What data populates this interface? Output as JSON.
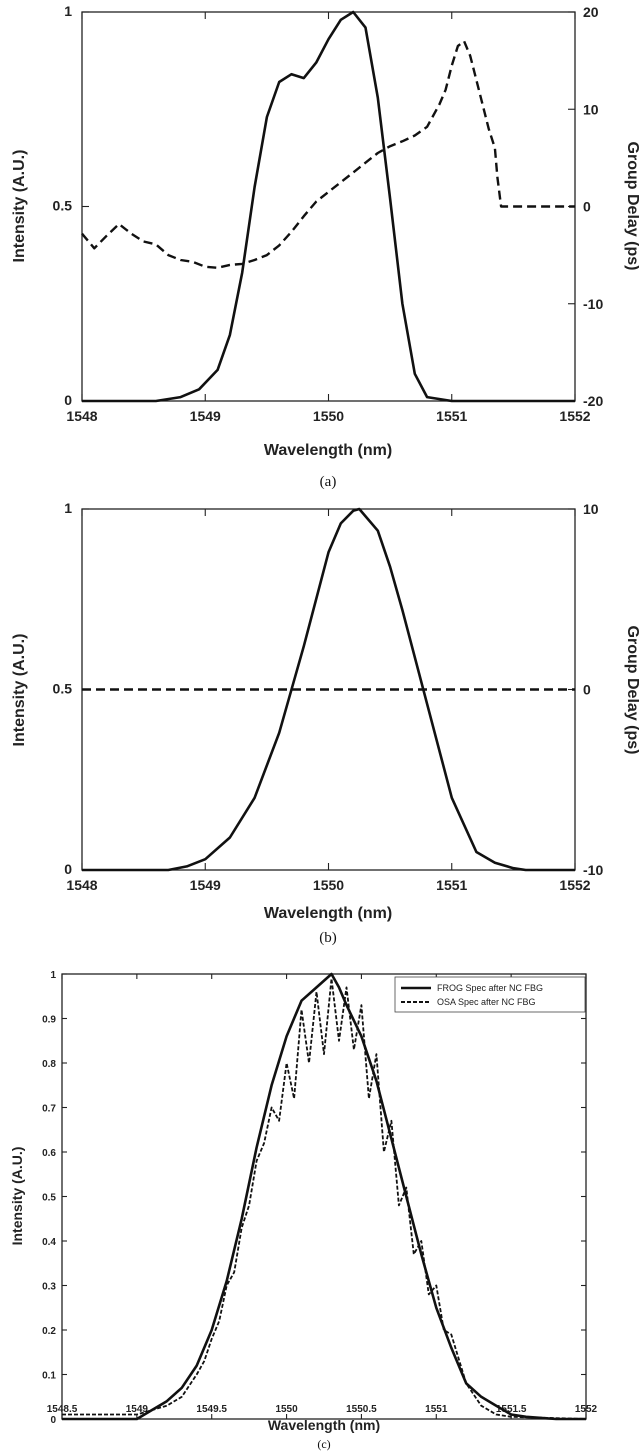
{
  "chart_data": [
    {
      "type": "line",
      "panel_caption": "(a)",
      "xlabel": "Wavelength (nm)",
      "ylabel": "Intensity (A.U.)",
      "y2label": "Group Delay (ps)",
      "xlim": [
        1548,
        1552
      ],
      "ylim": [
        0,
        1
      ],
      "y2lim": [
        -20,
        20
      ],
      "xticks": [
        "1548",
        "1549",
        "1550",
        "1551",
        "1552"
      ],
      "yticks": [
        "0",
        "0.5",
        "1"
      ],
      "y2ticks": [
        "-20",
        "-10",
        "0",
        "10",
        "20"
      ],
      "grid": false,
      "series": [
        {
          "axis": "left",
          "style": "solid",
          "x": [
            1548,
            1548.6,
            1548.8,
            1548.95,
            1549.1,
            1549.2,
            1549.3,
            1549.4,
            1549.5,
            1549.6,
            1549.7,
            1549.8,
            1549.9,
            1550.0,
            1550.1,
            1550.2,
            1550.3,
            1550.4,
            1550.5,
            1550.6,
            1550.7,
            1550.8,
            1551.0,
            1552
          ],
          "y": [
            0,
            0,
            0.01,
            0.03,
            0.08,
            0.17,
            0.33,
            0.55,
            0.73,
            0.82,
            0.84,
            0.83,
            0.87,
            0.93,
            0.98,
            1.0,
            0.96,
            0.78,
            0.52,
            0.25,
            0.07,
            0.01,
            0,
            0
          ]
        },
        {
          "axis": "right",
          "style": "dashed",
          "x": [
            1548,
            1548.1,
            1548.2,
            1548.3,
            1548.4,
            1548.5,
            1548.6,
            1548.7,
            1548.8,
            1548.9,
            1549.0,
            1549.1,
            1549.2,
            1549.3,
            1549.4,
            1549.5,
            1549.6,
            1549.7,
            1549.8,
            1549.9,
            1550.0,
            1550.1,
            1550.2,
            1550.3,
            1550.4,
            1550.5,
            1550.6,
            1550.7,
            1550.8,
            1550.9,
            1550.95,
            1551.0,
            1551.05,
            1551.1,
            1551.15,
            1551.2,
            1551.3,
            1551.35,
            1551.37,
            1551.4,
            1552
          ],
          "y": [
            -2.8,
            -4.3,
            -3.0,
            -1.8,
            -2.8,
            -3.6,
            -3.9,
            -5.0,
            -5.5,
            -5.7,
            -6.2,
            -6.3,
            -6.0,
            -5.9,
            -5.5,
            -5.0,
            -4.0,
            -2.6,
            -1.0,
            0.5,
            1.5,
            2.5,
            3.5,
            4.5,
            5.5,
            6.2,
            6.7,
            7.3,
            8.2,
            10.5,
            12.0,
            14.5,
            16.5,
            17.0,
            15.5,
            13.0,
            8.0,
            6.0,
            3.0,
            0,
            0
          ]
        }
      ]
    },
    {
      "type": "line",
      "panel_caption": "(b)",
      "xlabel": "Wavelength (nm)",
      "ylabel": "Intensity (A.U.)",
      "y2label": "Group Delay (ps)",
      "xlim": [
        1548,
        1552
      ],
      "ylim": [
        0,
        1
      ],
      "y2lim": [
        -10,
        10
      ],
      "xticks": [
        "1548",
        "1549",
        "1550",
        "1551",
        "1552"
      ],
      "yticks": [
        "0",
        "0.5",
        "1"
      ],
      "y2ticks": [
        "-10",
        "0",
        "10"
      ],
      "grid": false,
      "series": [
        {
          "axis": "left",
          "style": "solid",
          "x": [
            1548,
            1548.7,
            1548.85,
            1549.0,
            1549.2,
            1549.4,
            1549.6,
            1549.8,
            1550.0,
            1550.1,
            1550.2,
            1550.25,
            1550.4,
            1550.5,
            1550.6,
            1550.8,
            1551.0,
            1551.2,
            1551.35,
            1551.5,
            1551.6,
            1552
          ],
          "y": [
            0,
            0,
            0.01,
            0.03,
            0.09,
            0.2,
            0.38,
            0.62,
            0.88,
            0.96,
            0.995,
            1.0,
            0.94,
            0.84,
            0.72,
            0.46,
            0.2,
            0.05,
            0.02,
            0.005,
            0,
            0
          ]
        },
        {
          "axis": "right",
          "style": "dashed",
          "x": [
            1548,
            1552
          ],
          "y": [
            0,
            0
          ]
        }
      ]
    },
    {
      "type": "line",
      "panel_caption": "(c)",
      "xlabel": "Wavelength (nm)",
      "ylabel": "Intensity (A.U.)",
      "xlim": [
        1548.5,
        1552
      ],
      "ylim": [
        0,
        1
      ],
      "xticks": [
        "1548.5",
        "1549",
        "1549.5",
        "1550",
        "1550.5",
        "1551",
        "1551.5",
        "1552"
      ],
      "yticks": [
        "0",
        "0.1",
        "0.2",
        "0.3",
        "0.4",
        "0.5",
        "0.6",
        "0.7",
        "0.8",
        "0.9",
        "1"
      ],
      "grid": false,
      "legend": "top-right",
      "series": [
        {
          "name": "FROG Spec after NC FBG",
          "style": "solid",
          "x": [
            1548.5,
            1549.0,
            1549.1,
            1549.2,
            1549.3,
            1549.4,
            1549.5,
            1549.6,
            1549.7,
            1549.8,
            1549.9,
            1550.0,
            1550.1,
            1550.2,
            1550.3,
            1550.35,
            1550.4,
            1550.5,
            1550.6,
            1550.7,
            1550.8,
            1550.9,
            1551.0,
            1551.1,
            1551.2,
            1551.3,
            1551.4,
            1551.5,
            1551.6,
            1551.8,
            1552.0
          ],
          "y": [
            0,
            0,
            0.02,
            0.04,
            0.07,
            0.12,
            0.2,
            0.31,
            0.45,
            0.61,
            0.75,
            0.86,
            0.94,
            0.97,
            1.0,
            0.97,
            0.93,
            0.86,
            0.76,
            0.63,
            0.5,
            0.37,
            0.25,
            0.16,
            0.08,
            0.05,
            0.03,
            0.01,
            0.005,
            0,
            0
          ]
        },
        {
          "name": "OSA Spec after NC FBG",
          "style": "dashed",
          "x": [
            1548.5,
            1549.0,
            1549.2,
            1549.3,
            1549.4,
            1549.45,
            1549.5,
            1549.55,
            1549.6,
            1549.65,
            1549.7,
            1549.75,
            1549.8,
            1549.85,
            1549.9,
            1549.95,
            1550.0,
            1550.05,
            1550.1,
            1550.15,
            1550.2,
            1550.25,
            1550.3,
            1550.35,
            1550.4,
            1550.45,
            1550.5,
            1550.55,
            1550.6,
            1550.65,
            1550.7,
            1550.75,
            1550.8,
            1550.85,
            1550.9,
            1550.95,
            1551.0,
            1551.05,
            1551.1,
            1551.2,
            1551.3,
            1551.4,
            1551.5,
            1552.0
          ],
          "y": [
            0.01,
            0.01,
            0.03,
            0.05,
            0.1,
            0.13,
            0.18,
            0.22,
            0.3,
            0.33,
            0.43,
            0.48,
            0.58,
            0.62,
            0.7,
            0.67,
            0.8,
            0.72,
            0.92,
            0.8,
            0.96,
            0.82,
            0.99,
            0.85,
            0.97,
            0.83,
            0.93,
            0.72,
            0.82,
            0.6,
            0.67,
            0.48,
            0.52,
            0.37,
            0.4,
            0.28,
            0.3,
            0.2,
            0.19,
            0.08,
            0.03,
            0.01,
            0.005,
            0
          ]
        }
      ]
    }
  ]
}
